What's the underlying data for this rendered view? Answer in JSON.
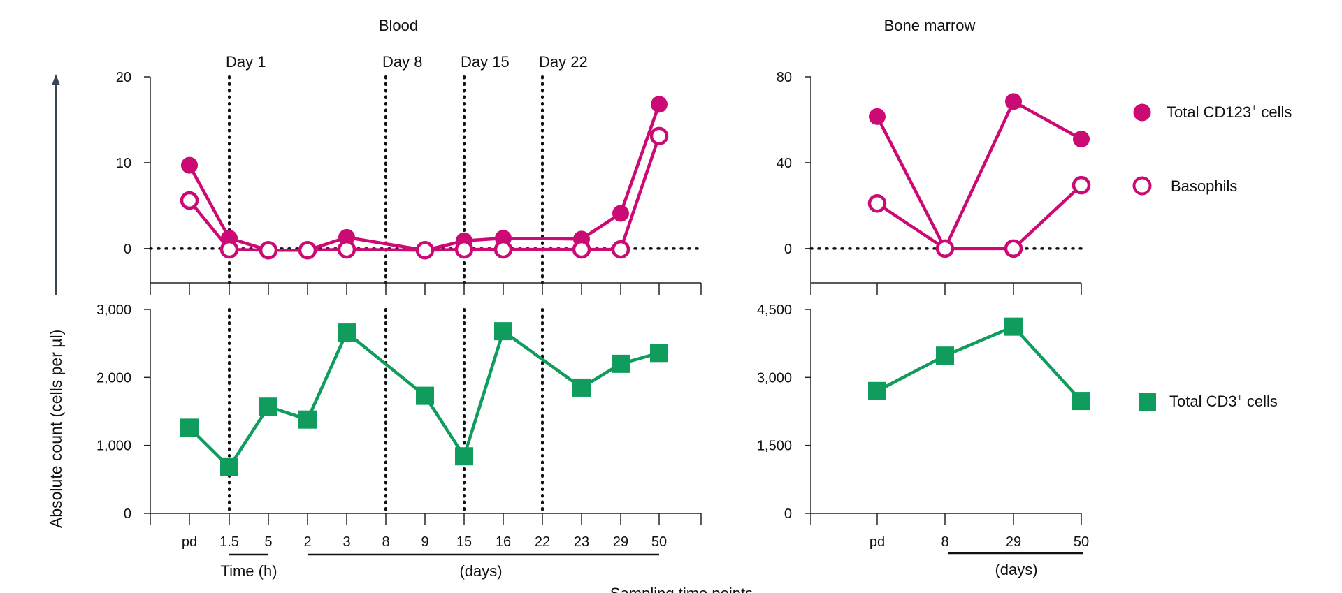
{
  "chart_data": [
    {
      "id": "blood-cd123",
      "type": "line",
      "title": "Blood",
      "categories": [
        "pd",
        "1.5",
        "5",
        "2",
        "3",
        "8",
        "9",
        "15",
        "16",
        "22",
        "23",
        "29",
        "50"
      ],
      "ylim": [
        -4,
        20
      ],
      "yticks": [
        {
          "v": 0,
          "label": "0"
        },
        {
          "v": 10,
          "label": "10"
        },
        {
          "v": 20,
          "label": "20"
        }
      ],
      "series": [
        {
          "name": "Total CD123+ cells",
          "marker": "filled-circle",
          "x": [
            0,
            1,
            2,
            3,
            4,
            6,
            7,
            8,
            10,
            11,
            12
          ],
          "values": [
            9.7,
            1.2,
            -0.2,
            -0.2,
            1.3,
            -0.2,
            0.9,
            1.2,
            1.1,
            4.1,
            16.8
          ]
        },
        {
          "name": "Basophils",
          "marker": "open-circle",
          "x": [
            0,
            1,
            2,
            3,
            4,
            6,
            7,
            8,
            10,
            11,
            12
          ],
          "values": [
            5.6,
            -0.1,
            -0.2,
            -0.2,
            -0.1,
            -0.2,
            -0.1,
            -0.1,
            -0.1,
            -0.1,
            13.1
          ]
        }
      ],
      "markers": [
        "Day 1",
        "Day 8",
        "Day 15",
        "Day 22"
      ]
    },
    {
      "id": "blood-cd3",
      "type": "line",
      "categories": [
        "pd",
        "1.5",
        "5",
        "2",
        "3",
        "8",
        "9",
        "15",
        "16",
        "22",
        "23",
        "29",
        "50"
      ],
      "ylim": [
        0,
        3000
      ],
      "yticks": [
        {
          "v": 0,
          "label": "0"
        },
        {
          "v": 1000,
          "label": "1,000"
        },
        {
          "v": 2000,
          "label": "2,000"
        },
        {
          "v": 3000,
          "label": "3,000"
        }
      ],
      "series": [
        {
          "name": "Total CD3+ cells",
          "marker": "square",
          "x": [
            0,
            1,
            2,
            3,
            4,
            6,
            7,
            8,
            10,
            11,
            12
          ],
          "values": [
            1260,
            680,
            1570,
            1380,
            2660,
            1730,
            840,
            2680,
            1850,
            2200,
            2360
          ]
        }
      ]
    },
    {
      "id": "marrow-cd123",
      "type": "line",
      "title": "Bone marrow",
      "categories": [
        "pd",
        "8",
        "29",
        "50"
      ],
      "ylim": [
        -16,
        80
      ],
      "yticks": [
        {
          "v": 0,
          "label": "0"
        },
        {
          "v": 40,
          "label": "40"
        },
        {
          "v": 80,
          "label": "80"
        }
      ],
      "series": [
        {
          "name": "Total CD123+ cells",
          "marker": "filled-circle",
          "values": [
            61.5,
            0,
            68.5,
            51
          ]
        },
        {
          "name": "Basophils",
          "marker": "open-circle",
          "values": [
            21,
            0,
            0,
            29.5
          ]
        }
      ]
    },
    {
      "id": "marrow-cd3",
      "type": "line",
      "categories": [
        "pd",
        "8",
        "29",
        "50"
      ],
      "ylim": [
        0,
        4500
      ],
      "yticks": [
        {
          "v": 0,
          "label": "0"
        },
        {
          "v": 1500,
          "label": "1,500"
        },
        {
          "v": 3000,
          "label": "3,000"
        },
        {
          "v": 4500,
          "label": "4,500"
        }
      ],
      "series": [
        {
          "name": "Total CD3+ cells",
          "marker": "square",
          "values": [
            2700,
            3480,
            4120,
            2480
          ]
        }
      ]
    }
  ],
  "labels": {
    "ylabel": "Absolute count (cells per µl)",
    "time_h": "Time (h)",
    "days": "(days)",
    "days_marrow": "(days)",
    "xlabel": "Sampling time points"
  },
  "legend": [
    {
      "key": "cd123",
      "text": "Total CD123",
      "sup": "+",
      "suffix": " cells"
    },
    {
      "key": "basophils",
      "text": "Basophils",
      "sup": "",
      "suffix": ""
    },
    {
      "key": "cd3",
      "text": "Total CD3",
      "sup": "+",
      "suffix": " cells"
    }
  ],
  "colors": {
    "magenta": "#cc0a74",
    "green": "#0f9c5c",
    "axis": "#222222",
    "arrow": "#3a4656"
  }
}
